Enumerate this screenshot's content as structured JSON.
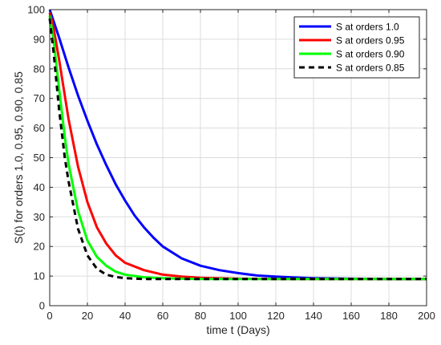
{
  "chart_data": {
    "type": "line",
    "xlabel": "time t (Days)",
    "ylabel": "S(t) for orders 1.0, 0.95, 0.90, 0.85",
    "xlim": [
      0,
      200
    ],
    "ylim": [
      0,
      100
    ],
    "xticks": [
      0,
      20,
      40,
      60,
      80,
      100,
      120,
      140,
      160,
      180,
      200
    ],
    "yticks": [
      0,
      10,
      20,
      30,
      40,
      50,
      60,
      70,
      80,
      90,
      100
    ],
    "grid": true,
    "legend_position": "top-right",
    "series": [
      {
        "name": "S at orders 1.0",
        "color": "#0000ff",
        "style": "solid",
        "x": [
          0,
          5,
          10,
          15,
          20,
          25,
          30,
          35,
          40,
          45,
          50,
          55,
          60,
          70,
          80,
          90,
          100,
          110,
          120,
          130,
          140,
          160,
          180,
          200
        ],
        "y": [
          100,
          90.5,
          80.5,
          71,
          62.5,
          54.5,
          47.5,
          41,
          35.5,
          30.5,
          26.5,
          23,
          20,
          16,
          13.5,
          12,
          11,
          10.2,
          9.8,
          9.5,
          9.3,
          9.1,
          9,
          9
        ]
      },
      {
        "name": "S at orders 0.95",
        "color": "#ff0000",
        "style": "solid",
        "x": [
          0,
          2,
          5,
          8,
          10,
          15,
          20,
          25,
          30,
          35,
          40,
          50,
          60,
          70,
          80,
          100,
          120,
          150,
          200
        ],
        "y": [
          99,
          94,
          83,
          71,
          63,
          47,
          35,
          26.5,
          21,
          17,
          14.5,
          12,
          10.5,
          9.8,
          9.4,
          9.1,
          9,
          9,
          9
        ]
      },
      {
        "name": "S at orders 0.90",
        "color": "#00ff00",
        "style": "solid",
        "x": [
          0,
          2,
          5,
          8,
          10,
          15,
          20,
          25,
          30,
          35,
          40,
          50,
          60,
          70,
          80,
          100,
          150,
          200
        ],
        "y": [
          98,
          90,
          73,
          57,
          48,
          32,
          22,
          16.5,
          13.5,
          11.5,
          10.5,
          9.6,
          9.3,
          9.1,
          9,
          9,
          9,
          9
        ]
      },
      {
        "name": "S at orders 0.85",
        "color": "#000000",
        "style": "dashed",
        "x": [
          0,
          2,
          5,
          8,
          10,
          15,
          20,
          25,
          30,
          35,
          40,
          50,
          60,
          80,
          100,
          150,
          200
        ],
        "y": [
          97,
          86,
          66,
          50,
          42,
          26,
          17,
          12.5,
          10.5,
          9.7,
          9.3,
          9,
          9,
          9,
          9,
          9,
          9
        ]
      }
    ]
  }
}
